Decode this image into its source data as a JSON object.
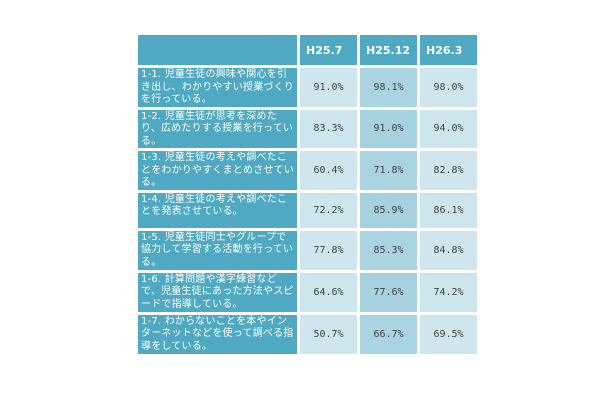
{
  "table": {
    "columns": [
      "H25.7",
      "H25.12",
      "H26.3"
    ],
    "rows": [
      {
        "label": "1-1. 児童生徒の興味や関心を引き出し、わかりやすい授業づくりを行っている。",
        "values": [
          "91.0%",
          "98.1%",
          "98.0%"
        ]
      },
      {
        "label": "1-2. 児童生徒が思考を深めたり、広めたりする授業を行っている。",
        "values": [
          "83.3%",
          "91.0%",
          "94.0%"
        ]
      },
      {
        "label": "1-3. 児童生徒の考えや調べたことをわかりやすくまとめさせている。",
        "values": [
          "60.4%",
          "71.8%",
          "82.8%"
        ]
      },
      {
        "label": "1-4. 児童生徒の考えや調べたことを発表させている。",
        "values": [
          "72.2%",
          "85.9%",
          "86.1%"
        ]
      },
      {
        "label": "1-5. 児童生徒同士やグループで協力して学習する活動を行っている。",
        "values": [
          "77.8%",
          "85.3%",
          "84.8%"
        ]
      },
      {
        "label": "1-6. 計算問題や漢字練習などで、児童生徒にあった方法やスピードで指導している。",
        "values": [
          "64.6%",
          "77.6%",
          "74.2%"
        ]
      },
      {
        "label": "1-7. わからないことを本やインターネットなどを使って調べる指導をしている。",
        "values": [
          "50.7%",
          "66.7%",
          "69.5%"
        ]
      }
    ]
  }
}
